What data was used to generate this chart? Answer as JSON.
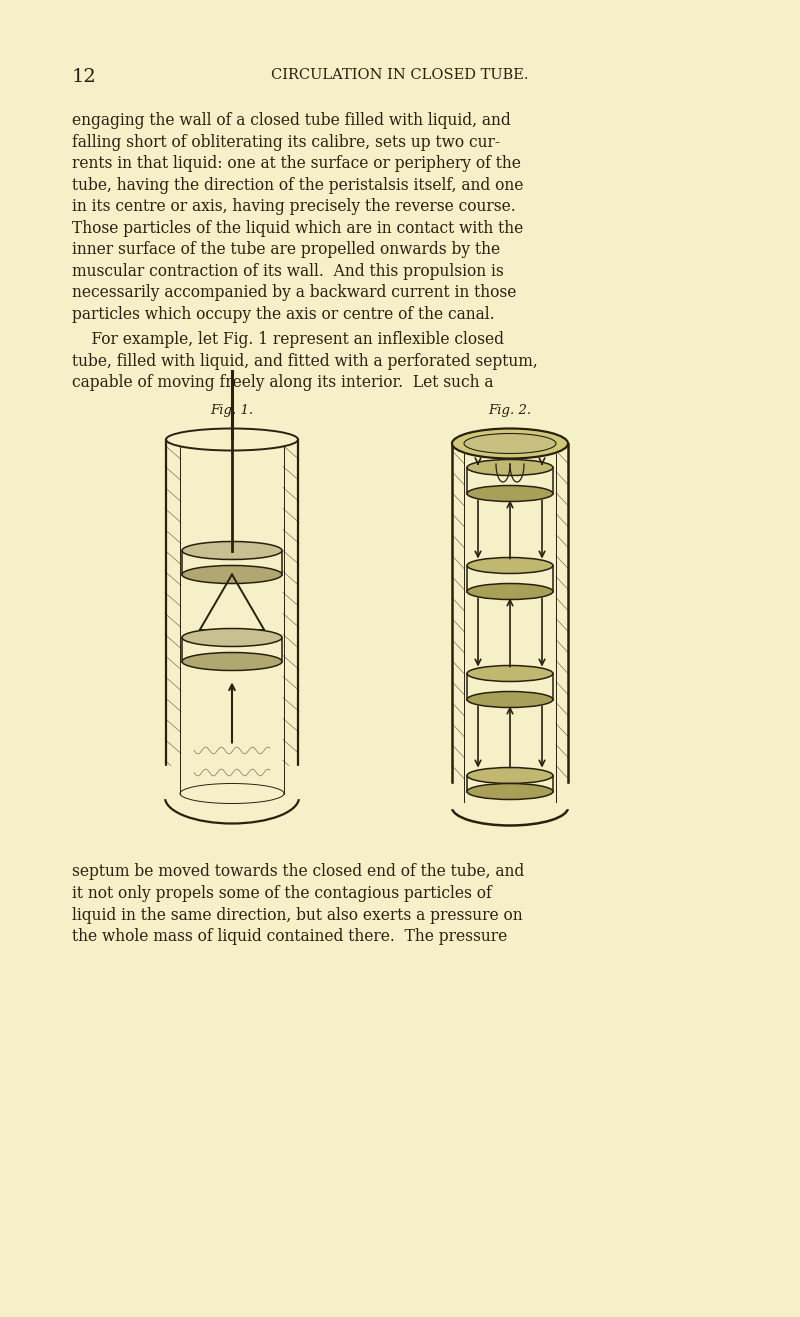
{
  "background_color": "#f5f0c8",
  "page_number": "12",
  "heading": "CIRCULATION IN CLOSED TUBE.",
  "heading_fontsize": 10.5,
  "page_num_fontsize": 14,
  "body_fontsize": 11.2,
  "fig_label_fontsize": 9.5,
  "text_color": "#2a2010",
  "paragraph1_lines": [
    "engaging the wall of a closed tube filled with liquid, and",
    "falling short of obliterating its calibre, sets up two cur-",
    "rents in that liquid: one at the surface or periphery of the",
    "tube, having the direction of the peristalsis itself, and one",
    "in its centre or axis, having precisely the reverse course.",
    "Those particles of the liquid which are in contact with the",
    "inner surface of the tube are propelled onwards by the",
    "muscular contraction of its wall.  And this propulsion is",
    "necessarily accompanied by a backward current in those",
    "particles which occupy the axis or centre of the canal."
  ],
  "paragraph2_lines": [
    "    For example, let Fig. 1 represent an inflexible closed",
    "tube, filled with liquid, and fitted with a perforated septum,",
    "capable of moving freely along its interior.  Let such a"
  ],
  "fig1_label": "Fig. 1.",
  "fig2_label": "Fig. 2.",
  "paragraph3_lines": [
    "septum be moved towards the closed end of the tube, and",
    "it not only propels some of the contagious particles of",
    "liquid in the same direction, but also exerts a pressure on",
    "the whole mass of liquid contained there.  The pressure"
  ]
}
